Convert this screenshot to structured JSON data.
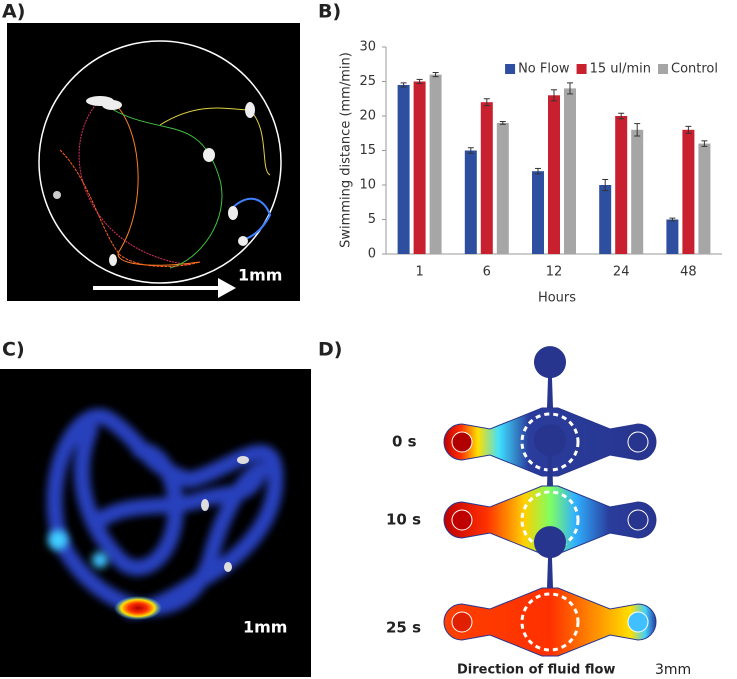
{
  "panels": {
    "a": "A)",
    "b": "B)",
    "c": "C)",
    "d": "D)"
  },
  "panel_a": {
    "scale": "1mm"
  },
  "panel_c": {
    "scale": "1mm"
  },
  "panel_d": {
    "times": [
      "0 s",
      "10 s",
      "25 s"
    ],
    "caption": "Direction of fluid flow",
    "scale": "3mm"
  },
  "chart_data": {
    "type": "bar",
    "xlabel": "Hours",
    "ylabel": "Swimming distance (mm/min)",
    "categories": [
      "1",
      "6",
      "12",
      "24",
      "48"
    ],
    "series": [
      {
        "name": "No Flow",
        "color": "#2e4f9f",
        "values": [
          24.5,
          15,
          12,
          10,
          5
        ],
        "errors": [
          0.3,
          0.4,
          0.4,
          0.8,
          0.2
        ]
      },
      {
        "name": "15 ul/min",
        "color": "#c8202f",
        "values": [
          25,
          22,
          23,
          20,
          18
        ],
        "errors": [
          0.3,
          0.5,
          0.8,
          0.4,
          0.5
        ]
      },
      {
        "name": "Control",
        "color": "#a6a6a6",
        "values": [
          26,
          19,
          24,
          18,
          16
        ],
        "errors": [
          0.3,
          0.2,
          0.8,
          0.9,
          0.4
        ]
      }
    ],
    "ylim": [
      0,
      30
    ],
    "yticks": [
      0,
      5,
      10,
      15,
      20,
      25,
      30
    ],
    "grid": false,
    "legend": "upper right"
  }
}
